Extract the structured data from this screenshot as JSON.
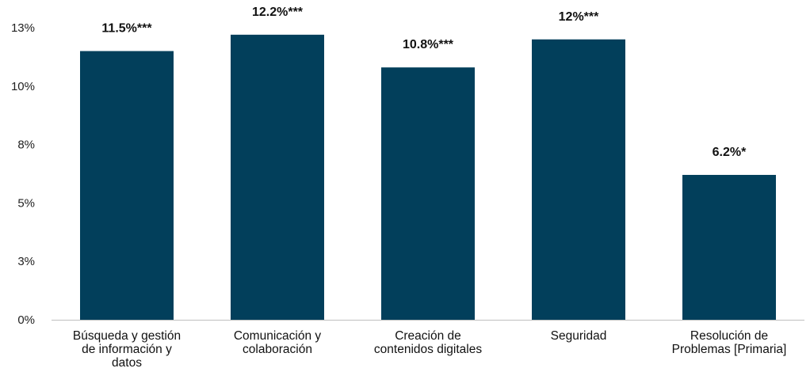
{
  "chart_data": {
    "type": "bar",
    "categories": [
      "Búsqueda y gestión de información y datos",
      "Comunicación y colaboración",
      "Creación de contenidos digitales",
      "Seguridad",
      "Resolución de Problemas [Primaria]"
    ],
    "category_lines": [
      [
        "Búsqueda y gestión",
        "de información y",
        "datos"
      ],
      [
        "Comunicación y",
        "colaboración"
      ],
      [
        "Creación de",
        "contenidos digitales"
      ],
      [
        "Seguridad"
      ],
      [
        "Resolución de",
        "Problemas [Primaria]"
      ]
    ],
    "values": [
      11.5,
      12.2,
      10.8,
      12,
      6.2
    ],
    "data_labels": [
      "11.5%***",
      "12.2%***",
      "10.8%***",
      "12%***",
      "6.2%*"
    ],
    "y_ticks": [
      {
        "value": 0,
        "label": "0%"
      },
      {
        "value": 2.5,
        "label": "3%"
      },
      {
        "value": 5,
        "label": "5%"
      },
      {
        "value": 7.5,
        "label": "8%"
      },
      {
        "value": 10,
        "label": "10%"
      },
      {
        "value": 12.5,
        "label": "13%"
      }
    ],
    "ylim": [
      0,
      12.5
    ],
    "title": "",
    "xlabel": "",
    "ylabel": "",
    "grid": false,
    "legend": "none",
    "bar_color": "#023f5b"
  }
}
